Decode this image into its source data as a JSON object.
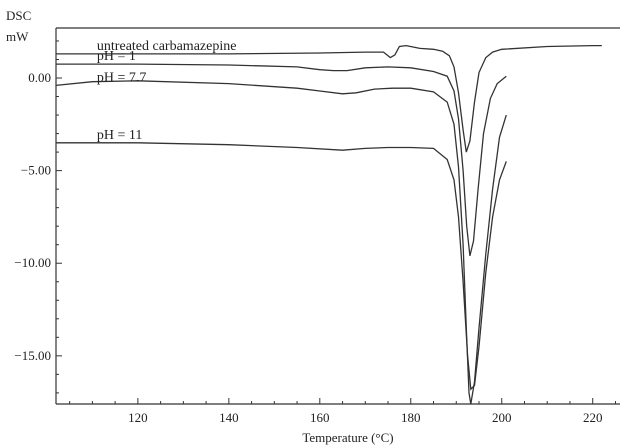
{
  "chart_data": {
    "type": "line",
    "ylabel_top": "DSC",
    "ylabel_unit": "mW",
    "xlabel": "Temperature (°C)",
    "xlim": [
      102,
      226
    ],
    "ylim": [
      -17.6,
      2.7
    ],
    "x_ticks": [
      120,
      140,
      160,
      180,
      200,
      220
    ],
    "x_tick_labels": [
      "120",
      "140",
      "160",
      "180",
      "200",
      "220"
    ],
    "y_ticks": [
      0,
      -5,
      -10,
      -15
    ],
    "y_tick_labels": [
      "0.00",
      "−5.00",
      "−10.00",
      "−15.00"
    ],
    "grid": false,
    "series": [
      {
        "name": "untreated carbamazepine",
        "points": [
          [
            102,
            1.3
          ],
          [
            120,
            1.3
          ],
          [
            140,
            1.3
          ],
          [
            160,
            1.35
          ],
          [
            170,
            1.4
          ],
          [
            174,
            1.4
          ],
          [
            175.5,
            1.1
          ],
          [
            176.5,
            1.25
          ],
          [
            177.5,
            1.7
          ],
          [
            179,
            1.75
          ],
          [
            182,
            1.6
          ],
          [
            185,
            1.55
          ],
          [
            187,
            1.45
          ],
          [
            188.5,
            1.2
          ],
          [
            189.5,
            0.6
          ],
          [
            190.5,
            -0.8
          ],
          [
            191.5,
            -2.8
          ],
          [
            192.2,
            -4.0
          ],
          [
            193,
            -3.4
          ],
          [
            194,
            -1.3
          ],
          [
            195,
            0.3
          ],
          [
            196.5,
            1.1
          ],
          [
            198,
            1.4
          ],
          [
            200,
            1.55
          ],
          [
            210,
            1.7
          ],
          [
            220,
            1.75
          ],
          [
            222,
            1.75
          ]
        ]
      },
      {
        "name": "pH = 1",
        "points": [
          [
            102,
            0.75
          ],
          [
            120,
            0.75
          ],
          [
            140,
            0.7
          ],
          [
            155,
            0.6
          ],
          [
            160,
            0.45
          ],
          [
            163,
            0.4
          ],
          [
            166,
            0.4
          ],
          [
            170,
            0.55
          ],
          [
            175,
            0.6
          ],
          [
            180,
            0.55
          ],
          [
            185,
            0.35
          ],
          [
            188,
            0.1
          ],
          [
            189.5,
            -0.7
          ],
          [
            190.5,
            -2.2
          ],
          [
            191.5,
            -5.0
          ],
          [
            192.3,
            -8.0
          ],
          [
            193,
            -9.6
          ],
          [
            193.8,
            -8.8
          ],
          [
            194.8,
            -6.0
          ],
          [
            196,
            -3.0
          ],
          [
            197.5,
            -1.1
          ],
          [
            199,
            -0.3
          ],
          [
            201,
            0.1
          ]
        ]
      },
      {
        "name": "pH = 7.7",
        "points": [
          [
            102,
            -0.4
          ],
          [
            110,
            -0.2
          ],
          [
            120,
            -0.15
          ],
          [
            140,
            -0.3
          ],
          [
            155,
            -0.55
          ],
          [
            160,
            -0.7
          ],
          [
            165,
            -0.85
          ],
          [
            168,
            -0.8
          ],
          [
            172,
            -0.6
          ],
          [
            176,
            -0.55
          ],
          [
            180,
            -0.55
          ],
          [
            185,
            -0.75
          ],
          [
            188,
            -1.3
          ],
          [
            189.5,
            -2.5
          ],
          [
            190.5,
            -4.8
          ],
          [
            191.5,
            -9.0
          ],
          [
            192.2,
            -13.5
          ],
          [
            192.8,
            -17.0
          ],
          [
            193.2,
            -17.6
          ],
          [
            194,
            -16.4
          ],
          [
            195,
            -13.5
          ],
          [
            196.5,
            -9.5
          ],
          [
            198,
            -6.0
          ],
          [
            199.5,
            -3.2
          ],
          [
            201,
            -2.0
          ]
        ]
      },
      {
        "name": "pH = 11",
        "points": [
          [
            102,
            -3.5
          ],
          [
            120,
            -3.5
          ],
          [
            140,
            -3.6
          ],
          [
            155,
            -3.75
          ],
          [
            165,
            -3.9
          ],
          [
            170,
            -3.8
          ],
          [
            175,
            -3.75
          ],
          [
            180,
            -3.75
          ],
          [
            185,
            -3.8
          ],
          [
            188,
            -4.4
          ],
          [
            189.5,
            -5.5
          ],
          [
            190.5,
            -7.5
          ],
          [
            191.5,
            -11.0
          ],
          [
            192.5,
            -15.0
          ],
          [
            193.2,
            -16.8
          ],
          [
            194,
            -16.6
          ],
          [
            195,
            -14.5
          ],
          [
            196.5,
            -10.5
          ],
          [
            198,
            -7.5
          ],
          [
            199.5,
            -5.5
          ],
          [
            201,
            -4.5
          ]
        ]
      }
    ]
  }
}
